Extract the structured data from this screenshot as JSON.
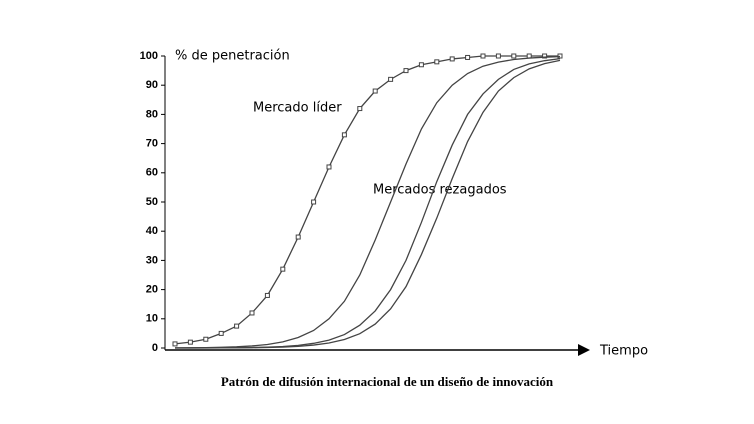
{
  "chart_data": {
    "type": "line",
    "caption": "Patrón de difusión internacional de un diseño de innovación",
    "ylabel": "% de penetración",
    "xlabel": "Tiempo",
    "annotations": [
      "Mercado líder",
      "Mercados rezagados"
    ],
    "categories": [
      null,
      null,
      null,
      null,
      null,
      null,
      null,
      null,
      null,
      null,
      null,
      null,
      null,
      null,
      null,
      null,
      null,
      null,
      null,
      null,
      null,
      null,
      null,
      null,
      null,
      null
    ],
    "ylim": [
      0,
      100
    ],
    "yticks": [
      0,
      10,
      20,
      30,
      40,
      50,
      60,
      70,
      80,
      90,
      100
    ],
    "grid": false,
    "series": [
      {
        "color": "#444444",
        "markers": true,
        "values": [
          1.4,
          2,
          3,
          5,
          7.5,
          12,
          18,
          27,
          38,
          50,
          62,
          73,
          82,
          88,
          92,
          95,
          97,
          98,
          99,
          99.5,
          100,
          100,
          100,
          100,
          100,
          100
        ]
      },
      {
        "color": "#444444",
        "markers": false,
        "values": [
          0.05,
          0.08,
          0.14,
          0.24,
          0.41,
          0.7,
          1.2,
          2.1,
          3.6,
          6,
          10,
          16,
          25,
          37,
          50,
          63,
          75,
          84,
          90,
          94,
          96.5,
          97.9,
          98.8,
          99.3,
          99.6,
          99.8
        ]
      },
      {
        "color": "#444444",
        "markers": false,
        "values": [
          0.01,
          0.02,
          0.04,
          0.07,
          0.11,
          0.18,
          0.3,
          0.5,
          0.9,
          1.6,
          2.7,
          4.6,
          7.8,
          12.7,
          20,
          30,
          43,
          57,
          69.5,
          80,
          87,
          92,
          95.4,
          97.3,
          98.4,
          99.1
        ]
      },
      {
        "color": "#444444",
        "markers": false,
        "values": [
          0.01,
          0.01,
          0.02,
          0.03,
          0.06,
          0.1,
          0.2,
          0.3,
          0.57,
          1,
          1.7,
          2.9,
          4.9,
          8.2,
          13.4,
          21,
          32,
          44.5,
          58,
          70.7,
          80.7,
          88,
          92.6,
          95.6,
          97.4,
          98.5
        ]
      }
    ]
  }
}
